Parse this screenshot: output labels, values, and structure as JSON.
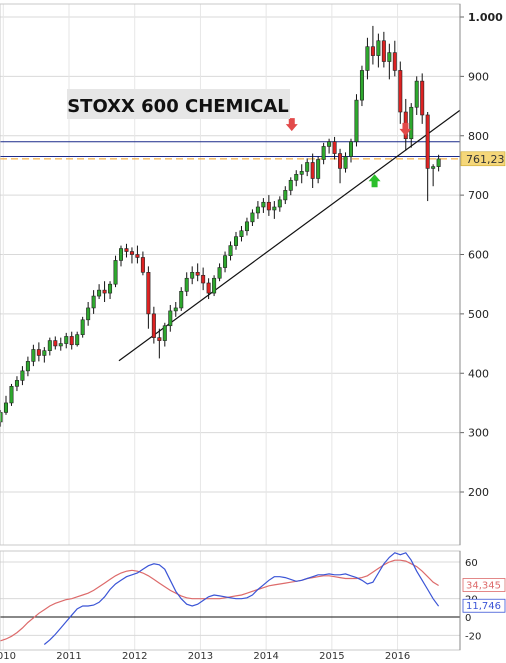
{
  "chart_data": [
    {
      "type": "candlestick",
      "title": "STOXX 600 CHEMICAL",
      "ylim": [
        125,
        1010
      ],
      "yticks": [
        1000,
        900,
        800,
        700,
        600,
        500,
        400,
        300,
        200
      ],
      "ytick_labels": [
        "1.000",
        "900",
        "800",
        "700",
        "600",
        "500",
        "400",
        "300",
        "200"
      ],
      "xlim": [
        2009.95,
        2016.95
      ],
      "xticks": [
        2010,
        2011,
        2012,
        2013,
        2014,
        2015,
        2016
      ],
      "xtick_labels": [
        "2010",
        "2011",
        "2012",
        "2013",
        "2014",
        "2015",
        "2016"
      ],
      "grid": true,
      "last_value_label": "761,23",
      "last_value": 761.23,
      "colors": {
        "up": "#2ea82e",
        "down": "#dd2222",
        "grid": "#d9d9d9",
        "support_line": "#1a2a8a",
        "dashed_level": "#f0a020",
        "price_label_bg": "#f5d77a"
      },
      "horizontal_levels": [
        {
          "value": 790,
          "style": "solid",
          "color": "#1a2a8a"
        },
        {
          "value": 765,
          "style": "solid",
          "color": "#1a2a8a"
        },
        {
          "value": 761,
          "style": "dashed",
          "color": "#f0a020"
        }
      ],
      "trendlines": [
        {
          "from": [
            2011.76,
            421
          ],
          "to": [
            2016.95,
            843
          ]
        }
      ],
      "arrows": [
        {
          "x": 2014.39,
          "y": 818,
          "direction": "down",
          "color": "#e24a4a"
        },
        {
          "x": 2016.12,
          "y": 810,
          "direction": "down",
          "color": "#e24a4a"
        },
        {
          "x": 2015.65,
          "y": 725,
          "direction": "up",
          "color": "#2bbf2b"
        }
      ],
      "monthly_ohlc_start": 2009.958,
      "monthly_ohlc": [
        [
          318,
          338,
          310,
          334
        ],
        [
          334,
          362,
          330,
          350
        ],
        [
          350,
          382,
          345,
          378
        ],
        [
          378,
          395,
          370,
          388
        ],
        [
          388,
          412,
          380,
          404
        ],
        [
          404,
          428,
          395,
          420
        ],
        [
          420,
          448,
          412,
          440
        ],
        [
          440,
          452,
          420,
          430
        ],
        [
          430,
          444,
          418,
          438
        ],
        [
          438,
          460,
          430,
          455
        ],
        [
          455,
          462,
          440,
          446
        ],
        [
          446,
          460,
          438,
          450
        ],
        [
          450,
          468,
          442,
          462
        ],
        [
          462,
          470,
          440,
          448
        ],
        [
          448,
          470,
          445,
          465
        ],
        [
          465,
          495,
          460,
          490
        ],
        [
          490,
          520,
          480,
          510
        ],
        [
          510,
          540,
          500,
          530
        ],
        [
          530,
          550,
          525,
          540
        ],
        [
          540,
          555,
          520,
          535
        ],
        [
          535,
          555,
          525,
          550
        ],
        [
          550,
          598,
          545,
          590
        ],
        [
          590,
          615,
          580,
          610
        ],
        [
          610,
          618,
          595,
          605
        ],
        [
          605,
          612,
          585,
          600
        ],
        [
          600,
          615,
          585,
          595
        ],
        [
          595,
          605,
          565,
          570
        ],
        [
          570,
          580,
          475,
          500
        ],
        [
          500,
          512,
          450,
          460
        ],
        [
          460,
          475,
          425,
          455
        ],
        [
          455,
          485,
          445,
          480
        ],
        [
          480,
          515,
          470,
          505
        ],
        [
          505,
          520,
          495,
          510
        ],
        [
          510,
          545,
          505,
          538
        ],
        [
          538,
          570,
          530,
          560
        ],
        [
          560,
          580,
          550,
          570
        ],
        [
          570,
          585,
          555,
          565
        ],
        [
          565,
          578,
          540,
          552
        ],
        [
          552,
          560,
          525,
          535
        ],
        [
          535,
          565,
          530,
          560
        ],
        [
          560,
          585,
          555,
          578
        ],
        [
          578,
          605,
          570,
          598
        ],
        [
          598,
          622,
          590,
          615
        ],
        [
          615,
          638,
          608,
          630
        ],
        [
          630,
          648,
          622,
          640
        ],
        [
          640,
          662,
          632,
          655
        ],
        [
          655,
          676,
          648,
          670
        ],
        [
          670,
          690,
          660,
          680
        ],
        [
          680,
          695,
          670,
          688
        ],
        [
          688,
          700,
          665,
          675
        ],
        [
          675,
          690,
          660,
          680
        ],
        [
          680,
          698,
          672,
          692
        ],
        [
          692,
          715,
          685,
          708
        ],
        [
          708,
          730,
          700,
          725
        ],
        [
          725,
          742,
          715,
          735
        ],
        [
          735,
          752,
          720,
          740
        ],
        [
          740,
          762,
          732,
          755
        ],
        [
          755,
          770,
          712,
          728
        ],
        [
          728,
          765,
          720,
          760
        ],
        [
          760,
          788,
          752,
          782
        ],
        [
          782,
          795,
          770,
          790
        ],
        [
          790,
          798,
          760,
          770
        ],
        [
          770,
          778,
          720,
          745
        ],
        [
          745,
          772,
          738,
          765
        ],
        [
          765,
          795,
          755,
          790
        ],
        [
          790,
          870,
          782,
          860
        ],
        [
          860,
          918,
          850,
          910
        ],
        [
          910,
          965,
          895,
          950
        ],
        [
          950,
          985,
          920,
          935
        ],
        [
          935,
          972,
          915,
          960
        ],
        [
          960,
          975,
          915,
          925
        ],
        [
          925,
          955,
          895,
          940
        ],
        [
          940,
          960,
          900,
          910
        ],
        [
          910,
          925,
          820,
          840
        ],
        [
          840,
          862,
          775,
          795
        ],
        [
          795,
          855,
          780,
          848
        ],
        [
          848,
          900,
          835,
          892
        ],
        [
          892,
          905,
          820,
          835
        ],
        [
          835,
          840,
          690,
          745
        ],
        [
          745,
          752,
          715,
          748
        ],
        [
          748,
          768,
          740,
          761
        ]
      ]
    },
    {
      "type": "line",
      "ylim": [
        -32,
        74
      ],
      "yticks": [
        60,
        20,
        0,
        -20
      ],
      "ytick_labels": [
        "60",
        "20",
        "0",
        "-20"
      ],
      "zero_line": 0,
      "series": [
        {
          "color": "#dd6b6b",
          "last_label": "34,345",
          "values": [
            -26,
            -24,
            -21,
            -17,
            -12,
            -6,
            -1,
            4,
            8,
            12,
            15,
            17,
            19,
            20,
            22,
            24,
            26,
            29,
            33,
            37,
            41,
            45,
            48,
            50,
            51,
            50,
            48,
            45,
            41,
            37,
            33,
            29,
            26,
            23,
            21,
            20,
            20,
            20,
            20,
            20,
            20,
            21,
            22,
            23,
            24,
            26,
            28,
            30,
            32,
            34,
            35,
            36,
            37,
            38,
            39,
            40,
            42,
            43,
            44,
            45,
            45,
            44,
            43,
            42,
            42,
            42,
            43,
            45,
            49,
            53,
            57,
            60,
            62,
            62,
            61,
            58,
            55,
            50,
            44,
            38,
            34.345
          ]
        },
        {
          "color": "#3b55d6",
          "last_label": "11,746",
          "values": [
            -30,
            -25,
            -19,
            -12,
            -5,
            2,
            9,
            12,
            12,
            13,
            16,
            22,
            30,
            36,
            40,
            44,
            46,
            48,
            52,
            56,
            58,
            57,
            52,
            40,
            28,
            20,
            14,
            12,
            14,
            18,
            22,
            24,
            23,
            22,
            21,
            20,
            20,
            21,
            24,
            30,
            35,
            40,
            44,
            44,
            43,
            41,
            39,
            40,
            42,
            44,
            46,
            46,
            47,
            46,
            46,
            47,
            45,
            43,
            40,
            36,
            38,
            48,
            58,
            65,
            70,
            68,
            70,
            62,
            50,
            40,
            30,
            20,
            11.746
          ]
        }
      ]
    }
  ]
}
